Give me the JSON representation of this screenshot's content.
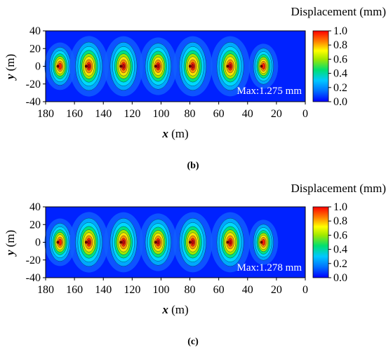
{
  "panels": [
    {
      "caption": "(b)",
      "legend_title": "Displacement (mm)",
      "max_label": "Max:1.275 mm",
      "chart_data": {
        "type": "heatmap",
        "xlabel": "x (m)",
        "ylabel": "y (m)",
        "xlim": [
          180,
          0
        ],
        "ylim": [
          -40,
          40
        ],
        "x_ticks": [
          180,
          160,
          140,
          120,
          100,
          80,
          60,
          40,
          20,
          0
        ],
        "y_ticks": [
          40,
          20,
          0,
          -20,
          -40
        ],
        "colorbar_ticks": [
          1.0,
          0.8,
          0.6,
          0.4,
          0.2,
          0.0
        ],
        "colorbar_range": [
          0,
          1.0
        ],
        "max_value": 1.275,
        "peaks": [
          {
            "x": 170,
            "y": 0,
            "value": 0.95
          },
          {
            "x": 150,
            "y": 0,
            "value": 1.275
          },
          {
            "x": 126,
            "y": 0,
            "value": 1.2
          },
          {
            "x": 102,
            "y": 0,
            "value": 1.15
          },
          {
            "x": 78,
            "y": 0,
            "value": 1.2
          },
          {
            "x": 52,
            "y": 0,
            "value": 1.2
          },
          {
            "x": 29,
            "y": 0,
            "value": 0.9
          }
        ]
      }
    },
    {
      "caption": "(c)",
      "legend_title": "Displacement (mm)",
      "max_label": "Max:1.278 mm",
      "chart_data": {
        "type": "heatmap",
        "xlabel": "x (m)",
        "ylabel": "y (m)",
        "xlim": [
          180,
          0
        ],
        "ylim": [
          -40,
          40
        ],
        "x_ticks": [
          180,
          160,
          140,
          120,
          100,
          80,
          60,
          40,
          20,
          0
        ],
        "y_ticks": [
          40,
          20,
          0,
          -20,
          -40
        ],
        "colorbar_ticks": [
          1.0,
          0.8,
          0.6,
          0.4,
          0.2,
          0.0
        ],
        "colorbar_range": [
          0,
          1.0
        ],
        "max_value": 1.278,
        "peaks": [
          {
            "x": 170,
            "y": 0,
            "value": 0.95
          },
          {
            "x": 150,
            "y": 0,
            "value": 1.278
          },
          {
            "x": 126,
            "y": 0,
            "value": 1.2
          },
          {
            "x": 102,
            "y": 0,
            "value": 1.15
          },
          {
            "x": 78,
            "y": 0,
            "value": 1.2
          },
          {
            "x": 52,
            "y": 0,
            "value": 1.2
          },
          {
            "x": 29,
            "y": 0,
            "value": 0.9
          }
        ]
      }
    }
  ]
}
